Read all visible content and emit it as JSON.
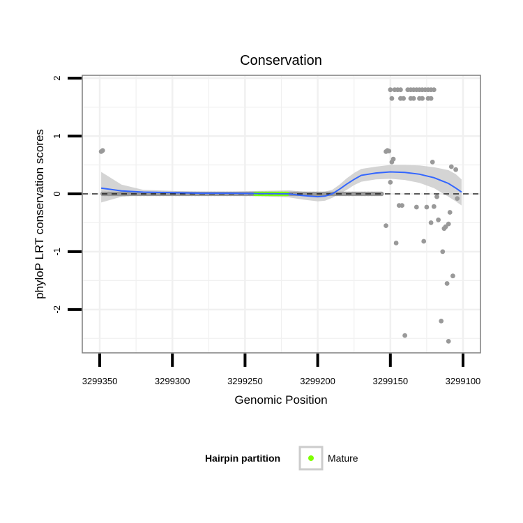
{
  "chart_data": {
    "type": "scatter",
    "title": "Conservation",
    "xlabel": "Genomic Position",
    "ylabel": "phyloP LRT conservation scores",
    "xlim": [
      3299362,
      3299088
    ],
    "ylim": [
      -2.75,
      2.05
    ],
    "x_ticks": [
      3299350,
      3299300,
      3299250,
      3299200,
      3299150,
      3299100
    ],
    "x_tick_labels": [
      "3299350",
      "3299300",
      "3299250",
      "3299200",
      "3299150",
      "3299100"
    ],
    "y_ticks": [
      2,
      1,
      0,
      -1,
      -2
    ],
    "y_tick_labels": [
      "2",
      "1",
      "0",
      "-1",
      "-2"
    ],
    "reference_line": 0,
    "grid": true,
    "colors": {
      "points": "#999999",
      "mature": "#7fff00",
      "smooth": "#3366ff",
      "band": "#cccccc",
      "grid": "#f0f0f0",
      "panel_border": "#7f7f7f",
      "ref_line": "#000000"
    },
    "flat_points": {
      "from": 3299348,
      "to": 3299156,
      "step": 1,
      "y": 0
    },
    "mature_region": {
      "from": 3299243,
      "to": 3299221,
      "y": 0
    },
    "points": [
      {
        "x": 3299349,
        "y": 0.73
      },
      {
        "x": 3299348,
        "y": 0.75
      },
      {
        "x": 3299153,
        "y": 0.73
      },
      {
        "x": 3299152,
        "y": 0.75
      },
      {
        "x": 3299151,
        "y": 0.74
      },
      {
        "x": 3299150,
        "y": 0.2
      },
      {
        "x": 3299153,
        "y": -0.55
      },
      {
        "x": 3299149,
        "y": 0.55
      },
      {
        "x": 3299148,
        "y": 0.6
      },
      {
        "x": 3299146,
        "y": -0.85
      },
      {
        "x": 3299144,
        "y": -0.2
      },
      {
        "x": 3299142,
        "y": -0.2
      },
      {
        "x": 3299140,
        "y": -2.45
      },
      {
        "x": 3299150,
        "y": 1.8
      },
      {
        "x": 3299147,
        "y": 1.8
      },
      {
        "x": 3299145,
        "y": 1.8
      },
      {
        "x": 3299143,
        "y": 1.8
      },
      {
        "x": 3299138,
        "y": 1.8
      },
      {
        "x": 3299136,
        "y": 1.8
      },
      {
        "x": 3299134,
        "y": 1.8
      },
      {
        "x": 3299132,
        "y": 1.8
      },
      {
        "x": 3299130,
        "y": 1.8
      },
      {
        "x": 3299128,
        "y": 1.8
      },
      {
        "x": 3299126,
        "y": 1.8
      },
      {
        "x": 3299124,
        "y": 1.8
      },
      {
        "x": 3299122,
        "y": 1.8
      },
      {
        "x": 3299120,
        "y": 1.8
      },
      {
        "x": 3299149,
        "y": 1.65
      },
      {
        "x": 3299143,
        "y": 1.65
      },
      {
        "x": 3299141,
        "y": 1.65
      },
      {
        "x": 3299136,
        "y": 1.65
      },
      {
        "x": 3299134,
        "y": 1.65
      },
      {
        "x": 3299130,
        "y": 1.65
      },
      {
        "x": 3299128,
        "y": 1.65
      },
      {
        "x": 3299124,
        "y": 1.65
      },
      {
        "x": 3299122,
        "y": 1.65
      },
      {
        "x": 3299132,
        "y": -0.23
      },
      {
        "x": 3299127,
        "y": -0.82
      },
      {
        "x": 3299125,
        "y": -0.23
      },
      {
        "x": 3299122,
        "y": -0.5
      },
      {
        "x": 3299121,
        "y": 0.55
      },
      {
        "x": 3299120,
        "y": -0.22
      },
      {
        "x": 3299118,
        "y": -0.05
      },
      {
        "x": 3299117,
        "y": -0.45
      },
      {
        "x": 3299115,
        "y": -2.2
      },
      {
        "x": 3299114,
        "y": -1.0
      },
      {
        "x": 3299113,
        "y": -0.6
      },
      {
        "x": 3299112,
        "y": -0.57
      },
      {
        "x": 3299111,
        "y": -1.55
      },
      {
        "x": 3299110,
        "y": -0.52
      },
      {
        "x": 3299110,
        "y": -2.55
      },
      {
        "x": 3299109,
        "y": -0.32
      },
      {
        "x": 3299108,
        "y": 0.47
      },
      {
        "x": 3299107,
        "y": -1.42
      },
      {
        "x": 3299105,
        "y": 0.42
      },
      {
        "x": 3299104,
        "y": -0.08
      }
    ],
    "smooth": {
      "x": [
        3299349,
        3299335,
        3299320,
        3299300,
        3299280,
        3299260,
        3299240,
        3299220,
        3299210,
        3299200,
        3299195,
        3299190,
        3299185,
        3299180,
        3299175,
        3299170,
        3299160,
        3299150,
        3299140,
        3299130,
        3299120,
        3299110,
        3299105,
        3299101
      ],
      "y": [
        0.1,
        0.05,
        0.03,
        0.02,
        0.01,
        0.01,
        0.005,
        0.0,
        -0.03,
        -0.05,
        -0.04,
        0.0,
        0.08,
        0.17,
        0.25,
        0.32,
        0.36,
        0.38,
        0.37,
        0.34,
        0.28,
        0.18,
        0.1,
        0.03
      ],
      "lower": [
        -0.15,
        -0.05,
        -0.02,
        -0.02,
        -0.02,
        -0.03,
        -0.04,
        -0.06,
        -0.1,
        -0.13,
        -0.12,
        -0.07,
        0.0,
        0.07,
        0.15,
        0.21,
        0.25,
        0.26,
        0.24,
        0.19,
        0.1,
        -0.05,
        -0.13,
        -0.2
      ],
      "upper": [
        0.38,
        0.16,
        0.07,
        0.05,
        0.04,
        0.04,
        0.05,
        0.06,
        0.04,
        0.03,
        0.04,
        0.07,
        0.16,
        0.27,
        0.36,
        0.43,
        0.47,
        0.5,
        0.5,
        0.49,
        0.46,
        0.41,
        0.34,
        0.25
      ]
    },
    "legend": {
      "title": "Hairpin partition",
      "entries": [
        {
          "label": "Mature",
          "color": "#7fff00"
        }
      ],
      "position": "bottom"
    }
  }
}
